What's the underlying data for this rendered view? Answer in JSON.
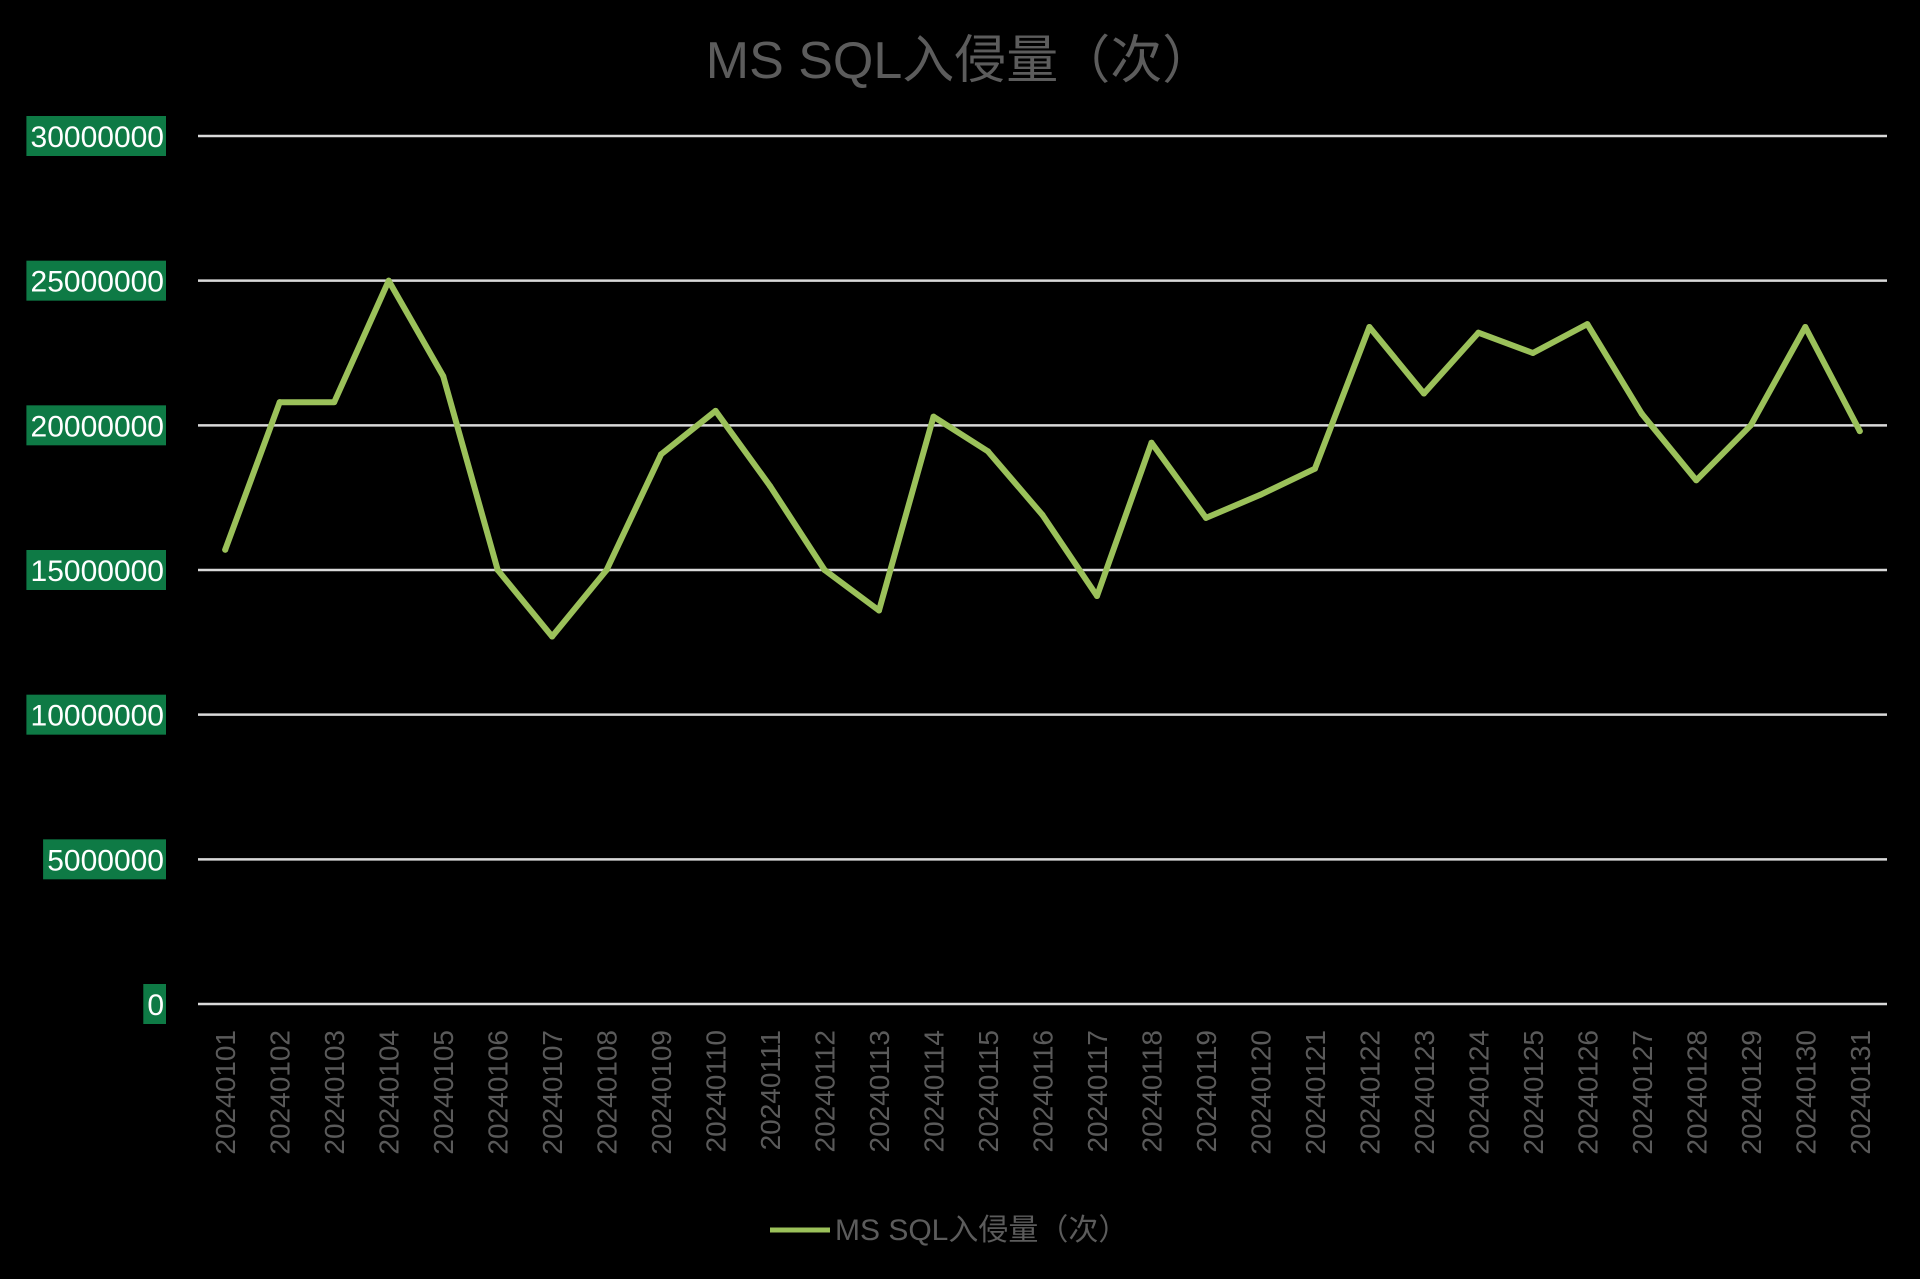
{
  "chart_data": {
    "type": "line",
    "title": "MS SQL入侵量（次）",
    "xlabel": "",
    "ylabel": "",
    "ylim": [
      0,
      30000000
    ],
    "yticks": [
      "0",
      "5000000",
      "10000000",
      "15000000",
      "20000000",
      "25000000",
      "30000000"
    ],
    "grid": true,
    "legend_position": "bottom",
    "categories": [
      "20240101",
      "20240102",
      "20240103",
      "20240104",
      "20240105",
      "20240106",
      "20240107",
      "20240108",
      "20240109",
      "20240110",
      "20240111",
      "20240112",
      "20240113",
      "20240114",
      "20240115",
      "20240116",
      "20240117",
      "20240118",
      "20240119",
      "20240120",
      "20240121",
      "20240122",
      "20240123",
      "20240124",
      "20240125",
      "20240126",
      "20240127",
      "20240128",
      "20240129",
      "20240130",
      "20240131"
    ],
    "series": [
      {
        "name": "MS SQL入侵量（次）",
        "color": "#9bc15a",
        "values": [
          15700000,
          20800000,
          20800000,
          25000000,
          21700000,
          15000000,
          12700000,
          15000000,
          19000000,
          20500000,
          17900000,
          15000000,
          13600000,
          20300000,
          19100000,
          16900000,
          14100000,
          19400000,
          16800000,
          17600000,
          18500000,
          23400000,
          21100000,
          23200000,
          22500000,
          23500000,
          20400000,
          18100000,
          20000000,
          23400000,
          19800000
        ]
      }
    ]
  }
}
